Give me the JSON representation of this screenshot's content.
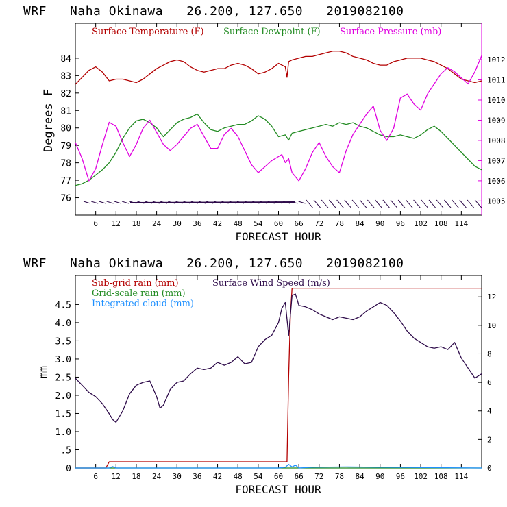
{
  "colors": {
    "temperature": "#b30000",
    "dewpoint": "#228b22",
    "pressure": "#e000e0",
    "subgrid_rain": "#b30000",
    "gridscale_rain": "#228b22",
    "cloud": "#1e90ff",
    "wind_speed": "#2e0b4a",
    "axes": "#000000"
  },
  "chart_data": [
    {
      "type": "line",
      "title": "WRF   Naha Okinawa   26.200, 127.650   2019082100",
      "xlabel": "FORECAST HOUR",
      "ylabel": "Degrees F",
      "xlim": [
        0,
        120
      ],
      "ylim_left": [
        75,
        86
      ],
      "ylim_right": [
        1004.3,
        1013.8
      ],
      "x_ticks": [
        "6",
        "12",
        "18",
        "24",
        "30",
        "36",
        "42",
        "48",
        "54",
        "60",
        "66",
        "72",
        "78",
        "84",
        "90",
        "96",
        "102",
        "108",
        "114"
      ],
      "y_ticks_left": [
        "76",
        "77",
        "78",
        "79",
        "80",
        "81",
        "82",
        "83",
        "84"
      ],
      "y_ticks_right": [
        "1005",
        "1006",
        "1007",
        "1008",
        "1009",
        "1010",
        "1011",
        "1012"
      ],
      "legend": [
        "Surface Temperature (F)",
        "Surface Dewpoint (F)",
        "Surface Pressure (mb)"
      ],
      "series": [
        {
          "name": "Surface Temperature (F)",
          "axis": "left",
          "x": [
            0,
            2,
            4,
            6,
            8,
            10,
            12,
            14,
            16,
            18,
            20,
            22,
            24,
            26,
            28,
            30,
            32,
            34,
            36,
            38,
            40,
            42,
            44,
            46,
            48,
            50,
            52,
            54,
            56,
            58,
            60,
            62,
            62.5,
            63,
            64,
            66,
            68,
            70,
            72,
            74,
            76,
            78,
            80,
            82,
            84,
            86,
            88,
            90,
            92,
            94,
            96,
            98,
            100,
            102,
            104,
            106,
            108,
            110,
            112,
            114,
            116,
            118,
            120
          ],
          "values": [
            82.5,
            82.9,
            83.3,
            83.5,
            83.2,
            82.7,
            82.8,
            82.8,
            82.7,
            82.6,
            82.8,
            83.1,
            83.4,
            83.6,
            83.8,
            83.9,
            83.8,
            83.5,
            83.3,
            83.2,
            83.3,
            83.4,
            83.4,
            83.6,
            83.7,
            83.6,
            83.4,
            83.1,
            83.2,
            83.4,
            83.7,
            83.5,
            82.9,
            83.8,
            83.9,
            84.0,
            84.1,
            84.1,
            84.2,
            84.3,
            84.4,
            84.4,
            84.3,
            84.1,
            84.0,
            83.9,
            83.7,
            83.6,
            83.6,
            83.8,
            83.9,
            84.0,
            84.0,
            84.0,
            83.9,
            83.8,
            83.6,
            83.4,
            83.1,
            82.8,
            82.7,
            82.6,
            82.7
          ]
        },
        {
          "name": "Surface Dewpoint (F)",
          "axis": "left",
          "x": [
            0,
            2,
            4,
            6,
            8,
            10,
            12,
            14,
            16,
            18,
            20,
            22,
            24,
            26,
            28,
            30,
            32,
            34,
            36,
            38,
            40,
            42,
            44,
            46,
            48,
            50,
            52,
            54,
            56,
            58,
            60,
            62,
            63,
            64,
            66,
            68,
            70,
            72,
            74,
            76,
            78,
            80,
            82,
            84,
            86,
            88,
            90,
            92,
            94,
            96,
            98,
            100,
            102,
            104,
            106,
            108,
            110,
            112,
            114,
            116,
            118,
            120
          ],
          "values": [
            76.7,
            76.8,
            77.0,
            77.3,
            77.6,
            78.0,
            78.6,
            79.4,
            80.0,
            80.4,
            80.5,
            80.3,
            80.0,
            79.5,
            79.9,
            80.3,
            80.5,
            80.6,
            80.8,
            80.3,
            79.9,
            79.8,
            80.0,
            80.1,
            80.2,
            80.2,
            80.4,
            80.7,
            80.5,
            80.1,
            79.5,
            79.6,
            79.3,
            79.7,
            79.8,
            79.9,
            80.0,
            80.1,
            80.2,
            80.1,
            80.3,
            80.2,
            80.3,
            80.1,
            80.0,
            79.8,
            79.6,
            79.5,
            79.5,
            79.6,
            79.5,
            79.4,
            79.6,
            79.9,
            80.1,
            79.8,
            79.4,
            79.0,
            78.6,
            78.2,
            77.8,
            77.6
          ]
        },
        {
          "name": "Surface Pressure (mb)",
          "axis": "right",
          "x": [
            0,
            2,
            4,
            6,
            8,
            10,
            12,
            14,
            16,
            18,
            20,
            22,
            24,
            26,
            28,
            30,
            32,
            34,
            36,
            38,
            40,
            42,
            44,
            46,
            48,
            50,
            52,
            54,
            56,
            58,
            60,
            61,
            62,
            63,
            64,
            66,
            68,
            70,
            72,
            74,
            76,
            78,
            80,
            82,
            84,
            86,
            88,
            90,
            92,
            94,
            96,
            98,
            100,
            102,
            104,
            106,
            108,
            110,
            112,
            114,
            116,
            118,
            120
          ],
          "values": [
            1007.9,
            1007.1,
            1006.0,
            1006.6,
            1007.8,
            1008.9,
            1008.7,
            1007.9,
            1007.2,
            1007.8,
            1008.6,
            1009.0,
            1008.4,
            1007.8,
            1007.5,
            1007.8,
            1008.2,
            1008.6,
            1008.8,
            1008.2,
            1007.6,
            1007.6,
            1008.3,
            1008.6,
            1008.2,
            1007.5,
            1006.8,
            1006.4,
            1006.7,
            1007.0,
            1007.2,
            1007.3,
            1006.9,
            1007.1,
            1006.4,
            1006.0,
            1006.6,
            1007.4,
            1007.9,
            1007.2,
            1006.7,
            1006.4,
            1007.5,
            1008.3,
            1008.8,
            1009.3,
            1009.7,
            1008.5,
            1008.0,
            1008.6,
            1010.1,
            1010.3,
            1009.8,
            1009.5,
            1010.3,
            1010.8,
            1011.3,
            1011.6,
            1011.4,
            1011.1,
            1010.8,
            1011.4,
            1012.2
          ]
        }
      ]
    },
    {
      "type": "line",
      "title": "WRF   Naha Okinawa   26.200, 127.650   2019082100",
      "xlabel": "FORECAST HOUR",
      "ylabel": "mm",
      "xlim": [
        0,
        120
      ],
      "ylim_left": [
        0,
        5.3
      ],
      "ylim_right": [
        0,
        13.5
      ],
      "x_ticks": [
        "6",
        "12",
        "18",
        "24",
        "30",
        "36",
        "42",
        "48",
        "54",
        "60",
        "66",
        "72",
        "78",
        "84",
        "90",
        "96",
        "102",
        "108",
        "114"
      ],
      "y_ticks_left": [
        "0",
        ".5",
        "1.0",
        "1.5",
        "2.0",
        "2.5",
        "3.0",
        "3.5",
        "4.0",
        "4.5"
      ],
      "y_ticks_right": [
        "0",
        "2",
        "4",
        "6",
        "8",
        "10",
        "12"
      ],
      "legend": [
        "Sub-grid rain (mm)",
        "Grid-scale rain (mm)",
        "Integrated cloud (mm)",
        "Surface Wind Speed (m/s)"
      ],
      "series": [
        {
          "name": "Sub-grid rain (mm)",
          "axis": "left",
          "x": [
            0,
            9,
            10,
            62,
            62.5,
            63,
            63.5,
            64,
            120
          ],
          "values": [
            0,
            0,
            0.17,
            0.17,
            0.17,
            2.5,
            4.2,
            4.95,
            4.95
          ]
        },
        {
          "name": "Grid-scale rain (mm)",
          "axis": "left",
          "x": [
            0,
            120
          ],
          "values": [
            0,
            0
          ]
        },
        {
          "name": "Integrated cloud (mm)",
          "axis": "left",
          "x": [
            0,
            10,
            11,
            12,
            30,
            60,
            62,
            63,
            64,
            65,
            66,
            70,
            80,
            90,
            120
          ],
          "values": [
            0,
            0,
            0.04,
            0,
            0,
            0,
            0.02,
            0.1,
            0.03,
            0.08,
            0,
            0.02,
            0.03,
            0.02,
            0
          ]
        },
        {
          "name": "Surface Wind Speed (m/s)",
          "axis": "right",
          "x": [
            0,
            2,
            4,
            6,
            8,
            10,
            11,
            12,
            14,
            16,
            18,
            20,
            22,
            24,
            25,
            26,
            28,
            30,
            32,
            34,
            36,
            38,
            40,
            42,
            44,
            46,
            48,
            50,
            52,
            54,
            56,
            58,
            60,
            61,
            62,
            63,
            64,
            65,
            66,
            68,
            70,
            72,
            74,
            76,
            78,
            80,
            82,
            84,
            86,
            88,
            90,
            92,
            94,
            96,
            98,
            100,
            102,
            104,
            106,
            108,
            110,
            112,
            114,
            116,
            118,
            120
          ],
          "values": [
            6.3,
            5.8,
            5.3,
            5.0,
            4.5,
            3.8,
            3.4,
            3.2,
            4.0,
            5.2,
            5.8,
            6.0,
            6.1,
            5.0,
            4.2,
            4.4,
            5.5,
            6.0,
            6.1,
            6.6,
            7.0,
            6.9,
            7.0,
            7.4,
            7.2,
            7.4,
            7.8,
            7.3,
            7.4,
            8.5,
            9.0,
            9.3,
            10.2,
            11.2,
            11.6,
            9.3,
            12.1,
            12.2,
            11.4,
            11.3,
            11.1,
            10.8,
            10.6,
            10.4,
            10.6,
            10.5,
            10.4,
            10.6,
            11.0,
            11.3,
            11.6,
            11.4,
            10.9,
            10.3,
            9.6,
            9.1,
            8.8,
            8.5,
            8.4,
            8.5,
            8.3,
            8.8,
            7.7,
            7.0,
            6.3,
            6.6
          ]
        }
      ]
    }
  ]
}
